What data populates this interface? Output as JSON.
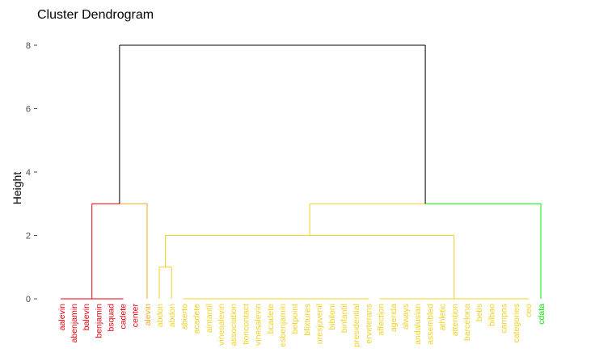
{
  "chart_data": {
    "type": "dendrogram",
    "title": "Cluster Dendrogram",
    "ylabel": "Height",
    "xlabel": "",
    "ylim": [
      0,
      8.3
    ],
    "yticks": [
      0,
      2,
      4,
      6,
      8
    ],
    "grid": false,
    "leaves": [
      {
        "label": "aalevin",
        "cluster": 1
      },
      {
        "label": "abenjamin",
        "cluster": 1
      },
      {
        "label": "balevin",
        "cluster": 1
      },
      {
        "label": "benjamin",
        "cluster": 1
      },
      {
        "label": "bsquad",
        "cluster": 1
      },
      {
        "label": "cadete",
        "cluster": 1
      },
      {
        "label": "center",
        "cluster": 1
      },
      {
        "label": "alevin",
        "cluster": 2
      },
      {
        "label": "abdon",
        "cluster": 3
      },
      {
        "label": "abdon",
        "cluster": 3
      },
      {
        "label": "abierto",
        "cluster": 3
      },
      {
        "label": "acadete",
        "cluster": 3
      },
      {
        "label": "aintantil",
        "cluster": 3
      },
      {
        "label": "vinesalevin",
        "cluster": 3
      },
      {
        "label": "association",
        "cluster": 3
      },
      {
        "label": "tioncontact",
        "cluster": 3
      },
      {
        "label": "vinesalevin",
        "cluster": 3
      },
      {
        "label": "bcadete",
        "cluster": 3
      },
      {
        "label": "esbenjamin",
        "cluster": 3
      },
      {
        "label": "betpoint",
        "cluster": 3
      },
      {
        "label": "bfixtures",
        "cluster": 3
      },
      {
        "label": "uresjuvenil",
        "cluster": 3
      },
      {
        "label": "bibiloni",
        "cluster": 3
      },
      {
        "label": "binfantil",
        "cluster": 3
      },
      {
        "label": "presidential",
        "cluster": 3
      },
      {
        "label": "erveterans",
        "cluster": 3
      },
      {
        "label": "affection",
        "cluster": 3
      },
      {
        "label": "agenda",
        "cluster": 3
      },
      {
        "label": "always",
        "cluster": 3
      },
      {
        "label": "andalusian",
        "cluster": 3
      },
      {
        "label": "assembled",
        "cluster": 3
      },
      {
        "label": "athletic",
        "cluster": 3
      },
      {
        "label": "attention",
        "cluster": 3
      },
      {
        "label": "barcelona",
        "cluster": 3
      },
      {
        "label": "betis",
        "cluster": 3
      },
      {
        "label": "bilbao",
        "cluster": 3
      },
      {
        "label": "campos",
        "cluster": 3
      },
      {
        "label": "categories",
        "cluster": 3
      },
      {
        "label": "ceo",
        "cluster": 3
      },
      {
        "label": "cdata",
        "cluster": 4
      }
    ],
    "merges": [
      {
        "height": 0,
        "span": [
          0,
          5
        ],
        "cluster": 1
      },
      {
        "height": 0,
        "span": [
          10,
          25
        ],
        "cluster": 3
      },
      {
        "height": 0,
        "span": [
          26,
          38
        ],
        "cluster": 3
      },
      {
        "height": 1.0,
        "left": {
          "span": [
            8,
            8
          ]
        },
        "right": {
          "span": [
            9,
            9
          ]
        },
        "cluster": 3
      },
      {
        "height": 2.0,
        "left": {
          "span": [
            8,
            9
          ],
          "height": 1.0
        },
        "right": {
          "span": [
            26,
            38
          ],
          "height": 0
        },
        "cluster": 3
      },
      {
        "height": 3.0,
        "left": {
          "span": [
            0,
            5
          ],
          "height": 0
        },
        "right": {
          "span": [
            6,
            7
          ],
          "height": 0
        },
        "cluster": 2
      },
      {
        "height": 3.0,
        "left": {
          "span": [
            8,
            38
          ],
          "height": 2.0
        },
        "right": {
          "span": [
            39,
            39
          ],
          "height": 0
        },
        "cluster": 4
      },
      {
        "height": 8.0,
        "left": {
          "height": 3.0
        },
        "right": {
          "height": 3.0
        },
        "cluster": 0
      }
    ],
    "cluster_colors": {
      "0": "#000000",
      "1": "#e8000b",
      "2": "#f5a623",
      "3": "#f2d024",
      "4": "#00ee00"
    },
    "axis_color": "#4d4d4d"
  }
}
